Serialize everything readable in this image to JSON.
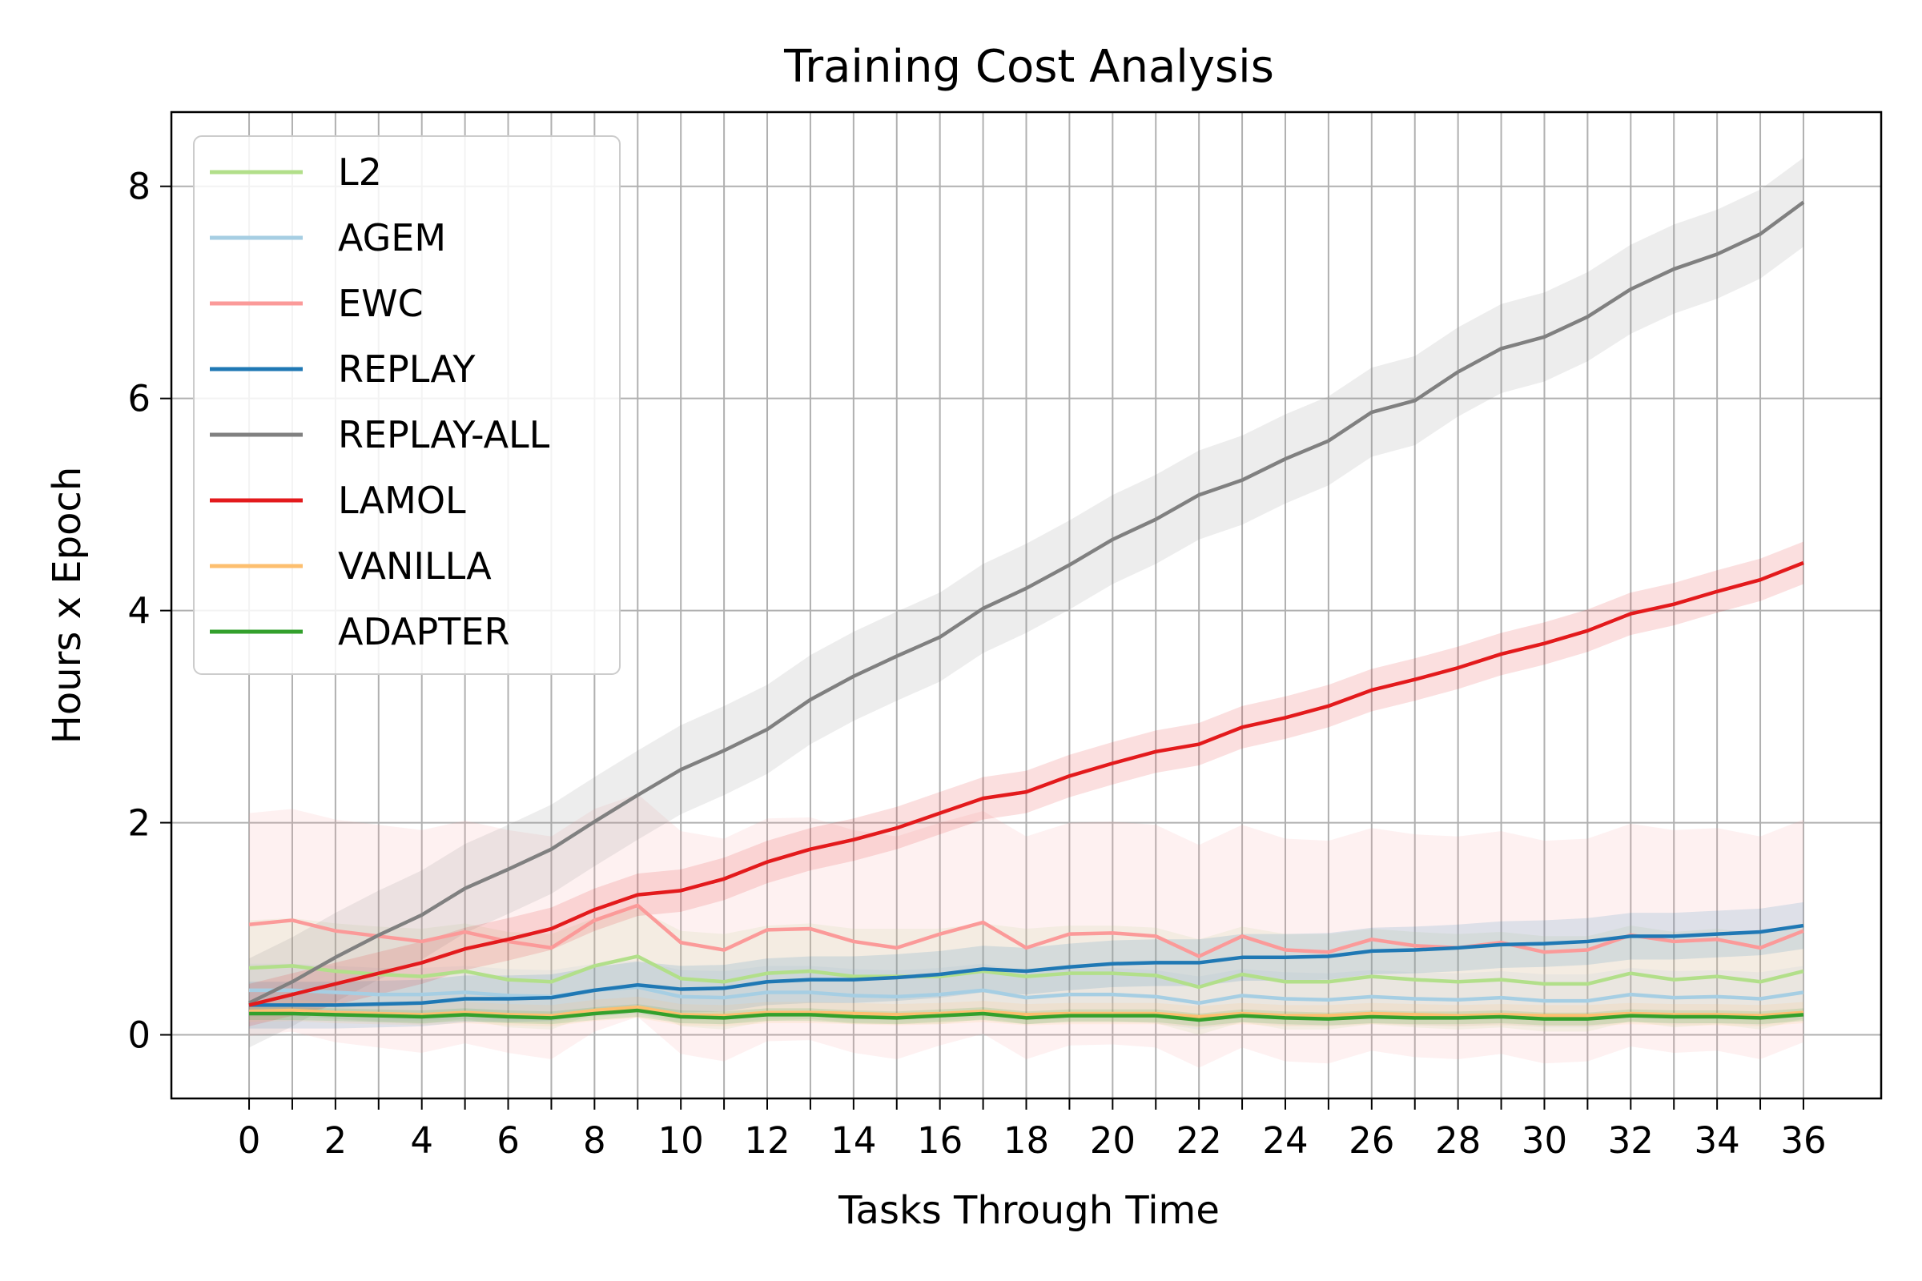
{
  "chart_data": {
    "type": "line",
    "title": "Training Cost Analysis",
    "xlabel": "Tasks Through Time",
    "ylabel": "Hours x Epoch",
    "xlim": [
      -1.8,
      37.8
    ],
    "ylim": [
      -0.6,
      8.7
    ],
    "x_ticks": [
      0,
      2,
      4,
      6,
      8,
      10,
      12,
      14,
      16,
      18,
      20,
      22,
      24,
      26,
      28,
      30,
      32,
      34,
      36
    ],
    "y_ticks": [
      0,
      2,
      4,
      6,
      8
    ],
    "grid": true,
    "legend_position": "upper-left",
    "x": [
      0,
      1,
      2,
      3,
      4,
      5,
      6,
      7,
      8,
      9,
      10,
      11,
      12,
      13,
      14,
      15,
      16,
      17,
      18,
      19,
      20,
      21,
      22,
      23,
      24,
      25,
      26,
      27,
      28,
      29,
      30,
      31,
      32,
      33,
      34,
      35,
      36
    ],
    "series": [
      {
        "name": "L2",
        "color": "#b2df8a",
        "band": 0.45,
        "values": [
          0.63,
          0.65,
          0.6,
          0.57,
          0.55,
          0.6,
          0.52,
          0.5,
          0.65,
          0.74,
          0.53,
          0.5,
          0.58,
          0.6,
          0.55,
          0.55,
          0.55,
          0.6,
          0.55,
          0.58,
          0.58,
          0.56,
          0.45,
          0.57,
          0.5,
          0.5,
          0.55,
          0.52,
          0.5,
          0.52,
          0.48,
          0.48,
          0.58,
          0.52,
          0.55,
          0.5,
          0.6
        ]
      },
      {
        "name": "AGEM",
        "color": "#a6cee3",
        "band": 0.25,
        "values": [
          0.42,
          0.42,
          0.4,
          0.38,
          0.38,
          0.4,
          0.37,
          0.36,
          0.42,
          0.45,
          0.36,
          0.35,
          0.4,
          0.4,
          0.37,
          0.36,
          0.38,
          0.42,
          0.35,
          0.38,
          0.38,
          0.36,
          0.3,
          0.37,
          0.34,
          0.33,
          0.36,
          0.34,
          0.33,
          0.35,
          0.32,
          0.32,
          0.38,
          0.35,
          0.36,
          0.34,
          0.4
        ]
      },
      {
        "name": "EWC",
        "color": "#fb9a99",
        "band": 1.05,
        "values": [
          1.04,
          1.08,
          0.98,
          0.93,
          0.88,
          0.97,
          0.88,
          0.82,
          1.08,
          1.22,
          0.87,
          0.8,
          0.99,
          1.0,
          0.88,
          0.82,
          0.95,
          1.06,
          0.82,
          0.95,
          0.96,
          0.93,
          0.74,
          0.93,
          0.8,
          0.78,
          0.9,
          0.84,
          0.82,
          0.87,
          0.78,
          0.8,
          0.94,
          0.88,
          0.9,
          0.82,
          0.98
        ]
      },
      {
        "name": "REPLAY",
        "color": "#1f78b4",
        "band": 0.22,
        "values": [
          0.28,
          0.28,
          0.28,
          0.29,
          0.3,
          0.34,
          0.34,
          0.35,
          0.42,
          0.47,
          0.43,
          0.44,
          0.5,
          0.52,
          0.52,
          0.54,
          0.57,
          0.62,
          0.6,
          0.64,
          0.67,
          0.68,
          0.68,
          0.73,
          0.73,
          0.74,
          0.79,
          0.8,
          0.82,
          0.85,
          0.86,
          0.88,
          0.93,
          0.93,
          0.95,
          0.97,
          1.03
        ]
      },
      {
        "name": "REPLAY-ALL",
        "color": "#808080",
        "band": 0.42,
        "values": [
          0.3,
          0.5,
          0.73,
          0.94,
          1.13,
          1.38,
          1.56,
          1.75,
          2.01,
          2.26,
          2.5,
          2.68,
          2.88,
          3.16,
          3.38,
          3.57,
          3.75,
          4.02,
          4.21,
          4.43,
          4.67,
          4.86,
          5.09,
          5.23,
          5.43,
          5.6,
          5.87,
          5.98,
          6.25,
          6.47,
          6.58,
          6.77,
          7.03,
          7.22,
          7.36,
          7.55,
          7.85
        ]
      },
      {
        "name": "LAMOL",
        "color": "#e31a1c",
        "band": 0.2,
        "values": [
          0.28,
          0.38,
          0.48,
          0.58,
          0.68,
          0.81,
          0.9,
          1.0,
          1.18,
          1.32,
          1.36,
          1.47,
          1.63,
          1.75,
          1.84,
          1.95,
          2.09,
          2.23,
          2.29,
          2.44,
          2.56,
          2.67,
          2.74,
          2.9,
          2.99,
          3.1,
          3.25,
          3.35,
          3.46,
          3.59,
          3.69,
          3.81,
          3.97,
          4.06,
          4.18,
          4.29,
          4.45
        ]
      },
      {
        "name": "VANILLA",
        "color": "#fdbf6f",
        "band": 0.1,
        "values": [
          0.22,
          0.23,
          0.21,
          0.2,
          0.19,
          0.21,
          0.19,
          0.18,
          0.23,
          0.26,
          0.19,
          0.18,
          0.21,
          0.21,
          0.2,
          0.19,
          0.2,
          0.22,
          0.19,
          0.2,
          0.2,
          0.2,
          0.17,
          0.2,
          0.18,
          0.18,
          0.2,
          0.19,
          0.18,
          0.19,
          0.18,
          0.18,
          0.2,
          0.19,
          0.19,
          0.18,
          0.21
        ]
      },
      {
        "name": "ADAPTER",
        "color": "#33a02c",
        "band": 0.06,
        "values": [
          0.2,
          0.2,
          0.19,
          0.18,
          0.17,
          0.19,
          0.17,
          0.16,
          0.2,
          0.23,
          0.17,
          0.16,
          0.19,
          0.19,
          0.17,
          0.16,
          0.18,
          0.2,
          0.16,
          0.18,
          0.18,
          0.18,
          0.14,
          0.18,
          0.16,
          0.15,
          0.17,
          0.16,
          0.16,
          0.17,
          0.15,
          0.15,
          0.18,
          0.17,
          0.17,
          0.16,
          0.19
        ]
      }
    ]
  }
}
